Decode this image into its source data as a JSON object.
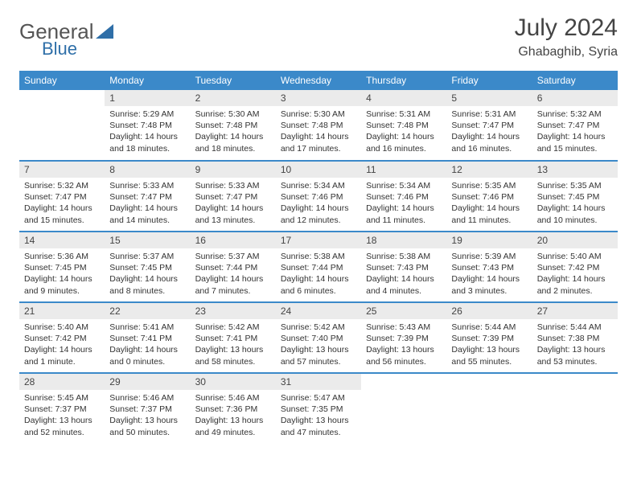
{
  "logo": {
    "text1": "General",
    "text2": "Blue"
  },
  "header": {
    "month": "July 2024",
    "location": "Ghabaghib, Syria"
  },
  "style": {
    "accent": "#3b89c9",
    "daynum_bg": "#ebebeb",
    "text_color": "#333333",
    "bg": "#ffffff",
    "header_fontsize": 30,
    "location_fontsize": 16,
    "th_fontsize": 12,
    "cell_fontsize": 10.5
  },
  "weekdays": [
    "Sunday",
    "Monday",
    "Tuesday",
    "Wednesday",
    "Thursday",
    "Friday",
    "Saturday"
  ],
  "weeks": [
    [
      null,
      {
        "n": "1",
        "sr": "5:29 AM",
        "ss": "7:48 PM",
        "dl": "14 hours and 18 minutes."
      },
      {
        "n": "2",
        "sr": "5:30 AM",
        "ss": "7:48 PM",
        "dl": "14 hours and 18 minutes."
      },
      {
        "n": "3",
        "sr": "5:30 AM",
        "ss": "7:48 PM",
        "dl": "14 hours and 17 minutes."
      },
      {
        "n": "4",
        "sr": "5:31 AM",
        "ss": "7:48 PM",
        "dl": "14 hours and 16 minutes."
      },
      {
        "n": "5",
        "sr": "5:31 AM",
        "ss": "7:47 PM",
        "dl": "14 hours and 16 minutes."
      },
      {
        "n": "6",
        "sr": "5:32 AM",
        "ss": "7:47 PM",
        "dl": "14 hours and 15 minutes."
      }
    ],
    [
      {
        "n": "7",
        "sr": "5:32 AM",
        "ss": "7:47 PM",
        "dl": "14 hours and 15 minutes."
      },
      {
        "n": "8",
        "sr": "5:33 AM",
        "ss": "7:47 PM",
        "dl": "14 hours and 14 minutes."
      },
      {
        "n": "9",
        "sr": "5:33 AM",
        "ss": "7:47 PM",
        "dl": "14 hours and 13 minutes."
      },
      {
        "n": "10",
        "sr": "5:34 AM",
        "ss": "7:46 PM",
        "dl": "14 hours and 12 minutes."
      },
      {
        "n": "11",
        "sr": "5:34 AM",
        "ss": "7:46 PM",
        "dl": "14 hours and 11 minutes."
      },
      {
        "n": "12",
        "sr": "5:35 AM",
        "ss": "7:46 PM",
        "dl": "14 hours and 11 minutes."
      },
      {
        "n": "13",
        "sr": "5:35 AM",
        "ss": "7:45 PM",
        "dl": "14 hours and 10 minutes."
      }
    ],
    [
      {
        "n": "14",
        "sr": "5:36 AM",
        "ss": "7:45 PM",
        "dl": "14 hours and 9 minutes."
      },
      {
        "n": "15",
        "sr": "5:37 AM",
        "ss": "7:45 PM",
        "dl": "14 hours and 8 minutes."
      },
      {
        "n": "16",
        "sr": "5:37 AM",
        "ss": "7:44 PM",
        "dl": "14 hours and 7 minutes."
      },
      {
        "n": "17",
        "sr": "5:38 AM",
        "ss": "7:44 PM",
        "dl": "14 hours and 6 minutes."
      },
      {
        "n": "18",
        "sr": "5:38 AM",
        "ss": "7:43 PM",
        "dl": "14 hours and 4 minutes."
      },
      {
        "n": "19",
        "sr": "5:39 AM",
        "ss": "7:43 PM",
        "dl": "14 hours and 3 minutes."
      },
      {
        "n": "20",
        "sr": "5:40 AM",
        "ss": "7:42 PM",
        "dl": "14 hours and 2 minutes."
      }
    ],
    [
      {
        "n": "21",
        "sr": "5:40 AM",
        "ss": "7:42 PM",
        "dl": "14 hours and 1 minute."
      },
      {
        "n": "22",
        "sr": "5:41 AM",
        "ss": "7:41 PM",
        "dl": "14 hours and 0 minutes."
      },
      {
        "n": "23",
        "sr": "5:42 AM",
        "ss": "7:41 PM",
        "dl": "13 hours and 58 minutes."
      },
      {
        "n": "24",
        "sr": "5:42 AM",
        "ss": "7:40 PM",
        "dl": "13 hours and 57 minutes."
      },
      {
        "n": "25",
        "sr": "5:43 AM",
        "ss": "7:39 PM",
        "dl": "13 hours and 56 minutes."
      },
      {
        "n": "26",
        "sr": "5:44 AM",
        "ss": "7:39 PM",
        "dl": "13 hours and 55 minutes."
      },
      {
        "n": "27",
        "sr": "5:44 AM",
        "ss": "7:38 PM",
        "dl": "13 hours and 53 minutes."
      }
    ],
    [
      {
        "n": "28",
        "sr": "5:45 AM",
        "ss": "7:37 PM",
        "dl": "13 hours and 52 minutes."
      },
      {
        "n": "29",
        "sr": "5:46 AM",
        "ss": "7:37 PM",
        "dl": "13 hours and 50 minutes."
      },
      {
        "n": "30",
        "sr": "5:46 AM",
        "ss": "7:36 PM",
        "dl": "13 hours and 49 minutes."
      },
      {
        "n": "31",
        "sr": "5:47 AM",
        "ss": "7:35 PM",
        "dl": "13 hours and 47 minutes."
      },
      null,
      null,
      null
    ]
  ],
  "labels": {
    "sunrise": "Sunrise: ",
    "sunset": "Sunset: ",
    "daylight": "Daylight: "
  }
}
